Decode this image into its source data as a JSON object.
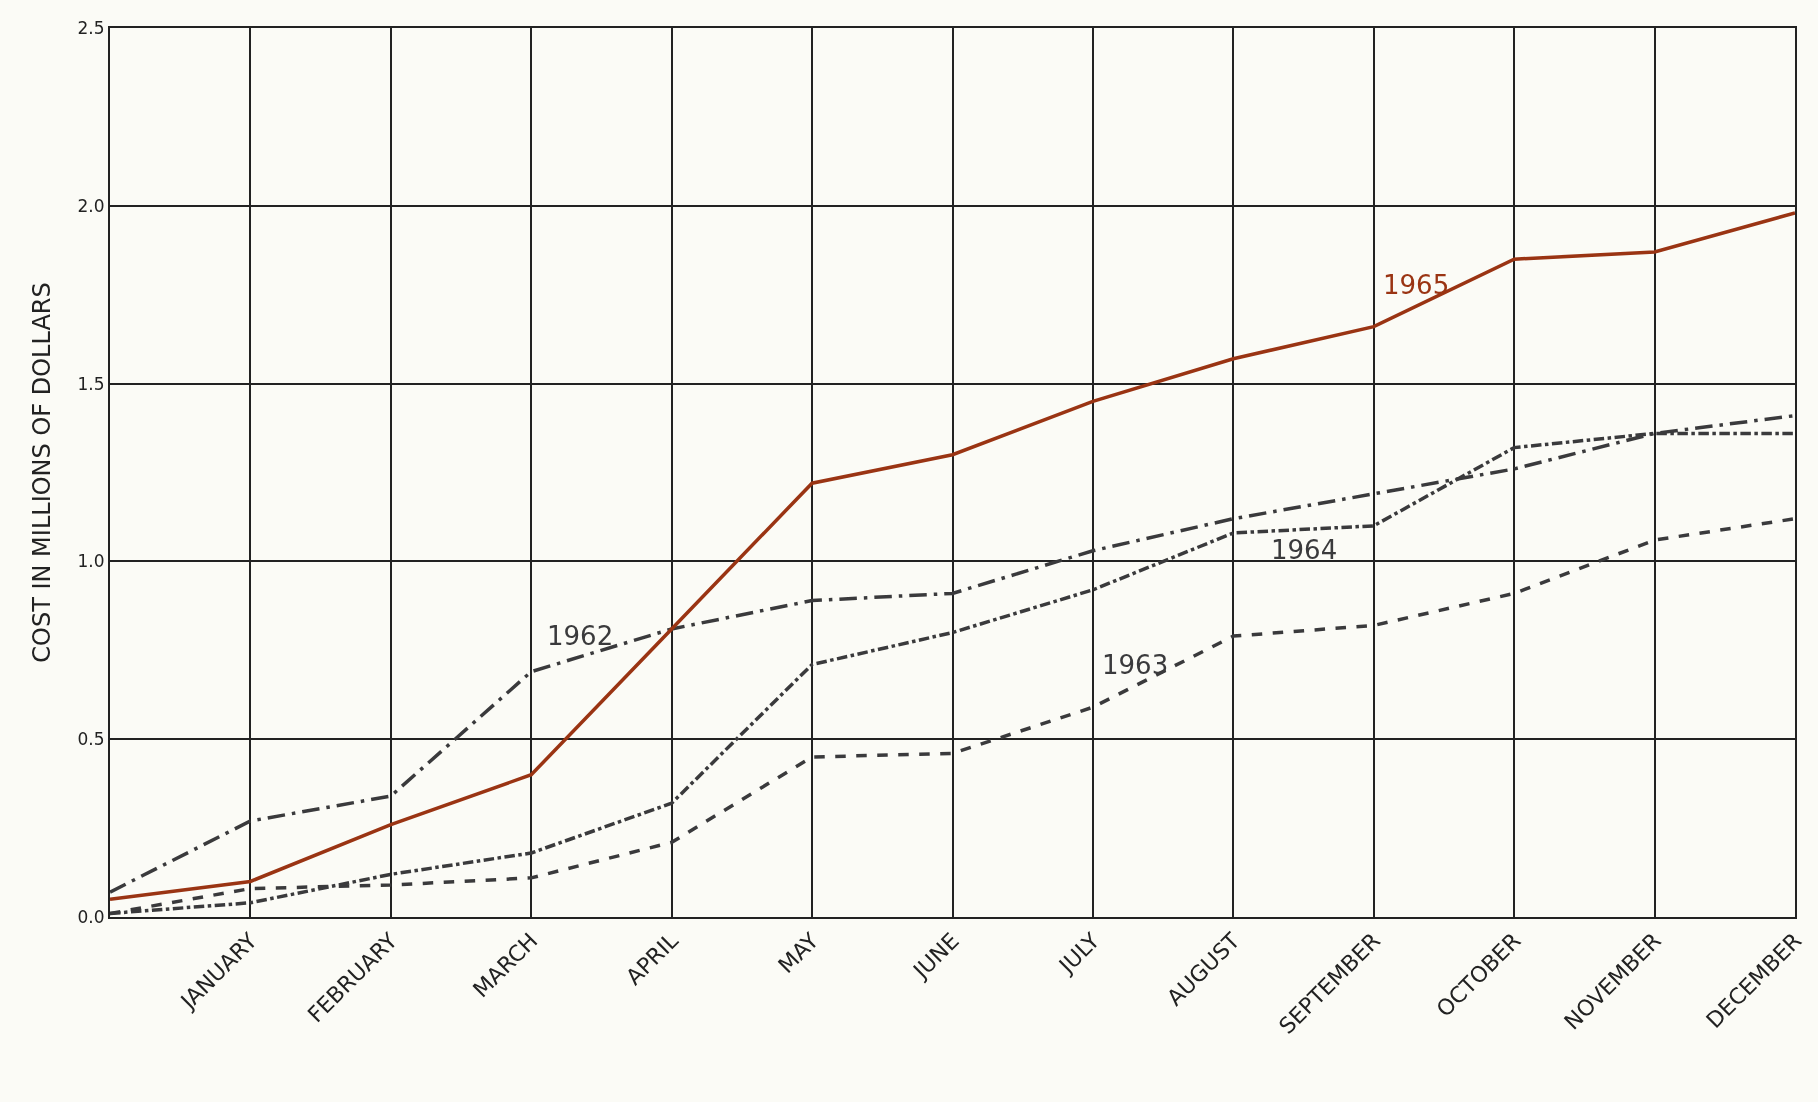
{
  "chart_data": {
    "type": "line",
    "ylabel": "COST IN MILLIONS OF DOLLARS",
    "categories": [
      null,
      "JANUARY",
      "FEBRUARY",
      "MARCH",
      "APRIL",
      "MAY",
      "JUNE",
      "JULY",
      "AUGUST",
      "SEPTEMBER",
      "OCTOBER",
      "NOVEMBER",
      "DECEMBER"
    ],
    "series": [
      {
        "name": "1962",
        "color": "#3a3a3c",
        "line_style": "longdashdot",
        "values": [
          0.07,
          0.27,
          0.34,
          0.69,
          0.81,
          0.89,
          0.91,
          1.03,
          1.12,
          1.19,
          1.26,
          1.36,
          1.41
        ]
      },
      {
        "name": "1963",
        "color": "#3a3a3c",
        "line_style": "dashed",
        "values": [
          0.01,
          0.08,
          0.09,
          0.11,
          0.21,
          0.45,
          0.46,
          0.59,
          0.79,
          0.82,
          0.91,
          1.06,
          1.12
        ]
      },
      {
        "name": "1964",
        "color": "#3a3a3c",
        "line_style": "dashdot",
        "values": [
          0.01,
          0.04,
          0.12,
          0.18,
          0.32,
          0.71,
          0.8,
          0.92,
          1.08,
          1.1,
          1.32,
          1.36,
          1.36
        ]
      },
      {
        "name": "1965",
        "color": "#9a3413",
        "line_style": "solid",
        "values": [
          0.05,
          0.1,
          0.26,
          0.4,
          0.81,
          1.22,
          1.3,
          1.45,
          1.57,
          1.66,
          1.85,
          1.87,
          1.98
        ]
      }
    ],
    "ylim": [
      0,
      2.5
    ],
    "yticks": [
      {
        "value": 0,
        "label": "0.0"
      },
      {
        "value": 0.5,
        "label": "0.5"
      },
      {
        "value": 1.0,
        "label": "1.0"
      },
      {
        "value": 1.5,
        "label": "1.5"
      },
      {
        "value": 2.0,
        "label": "2.0"
      },
      {
        "value": 2.5,
        "label": "2.5"
      }
    ],
    "grid": true,
    "legend": false,
    "marker": "none"
  }
}
